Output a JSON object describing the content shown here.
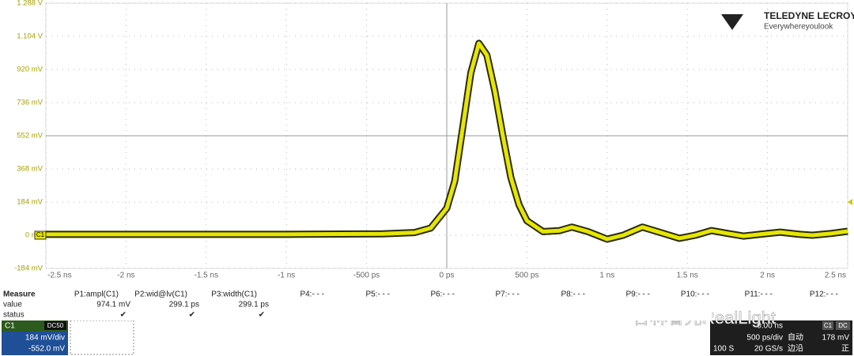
{
  "chart_data": {
    "type": "line",
    "x": [
      -2.5,
      -1,
      -0.4,
      -0.2,
      -0.1,
      0,
      0.05,
      0.1,
      0.15,
      0.2,
      0.25,
      0.3,
      0.35,
      0.4,
      0.45,
      0.5,
      0.6,
      0.7,
      0.78,
      0.88,
      1.0,
      1.1,
      1.22,
      1.35,
      1.45,
      1.55,
      1.65,
      1.75,
      1.85,
      1.95,
      2.08,
      2.2,
      2.28,
      2.4,
      2.5
    ],
    "series": [
      {
        "name": "C1",
        "color": "#e6e600",
        "values": [
          5,
          5,
          8,
          15,
          40,
          150,
          300,
          600,
          900,
          1065,
          1000,
          800,
          550,
          320,
          170,
          80,
          20,
          25,
          45,
          20,
          -22,
          0,
          45,
          10,
          -17,
          0,
          26,
          10,
          -5,
          5,
          17,
          5,
          0,
          10,
          22
        ]
      }
    ],
    "xlim": [
      -2.5,
      2.5
    ],
    "xticks": [
      {
        "value": -2.5,
        "label": "-2.5 ns"
      },
      {
        "value": -2,
        "label": "-2 ns"
      },
      {
        "value": -1.5,
        "label": "-1.5 ns"
      },
      {
        "value": -1,
        "label": "-1 ns"
      },
      {
        "value": -0.5,
        "label": "-500 ps"
      },
      {
        "value": 0,
        "label": "0 ps"
      },
      {
        "value": 0.5,
        "label": "500 ps"
      },
      {
        "value": 1,
        "label": "1 ns"
      },
      {
        "value": 1.5,
        "label": "1.5 ns"
      },
      {
        "value": 2,
        "label": "2 ns"
      },
      {
        "value": 2.5,
        "label": "2.5 ns"
      }
    ],
    "ylim": [
      -184,
      1288
    ],
    "yticks": [
      {
        "value": 1288,
        "label": "1.288 V"
      },
      {
        "value": 1104,
        "label": "1.104 V"
      },
      {
        "value": 920,
        "label": "920 mV"
      },
      {
        "value": 736,
        "label": "736 mV"
      },
      {
        "value": 552,
        "label": "552 mV"
      },
      {
        "value": 368,
        "label": "368 mV"
      },
      {
        "value": 184,
        "label": "184 mV"
      },
      {
        "value": 0,
        "label": "0 mV"
      },
      {
        "value": -184,
        "label": "-184 mV"
      }
    ],
    "grid": true
  },
  "logo": {
    "brand": "TELEDYNE LECROY",
    "tagline": "Everywhereyoulook"
  },
  "measure": {
    "title": "Measure",
    "row_labels": [
      "value",
      "status"
    ],
    "columns": [
      {
        "name": "P1:ampl(C1)",
        "value": "974.1 mV",
        "status": "✔"
      },
      {
        "name": "P2:wid@lv(C1)",
        "value": "299.1 ps",
        "status": "✔"
      },
      {
        "name": "P3:width(C1)",
        "value": "299.1 ps",
        "status": "✔"
      },
      {
        "name": "P4:- - -"
      },
      {
        "name": "P5:- - -"
      },
      {
        "name": "P6:- - -"
      },
      {
        "name": "P7:- - -"
      },
      {
        "name": "P8:- - -"
      },
      {
        "name": "P9:- - -"
      },
      {
        "name": "P10:- - -"
      },
      {
        "name": "P11:- - -"
      },
      {
        "name": "P12:- - -"
      }
    ]
  },
  "channel": {
    "name": "C1",
    "coupling": "DC50",
    "scale": "184 mV/div",
    "offset": "-552.0 mV"
  },
  "timebase": {
    "delay": "0.00 ns",
    "scale": "500 ps/div",
    "rate": "20 GS/s",
    "samples": "100 S",
    "mode": "自动",
    "type": "边沿",
    "level": "178 mV",
    "slope": "正",
    "source": "C1",
    "coupling": "DC"
  },
  "watermark": "杏林睿光RealLight"
}
